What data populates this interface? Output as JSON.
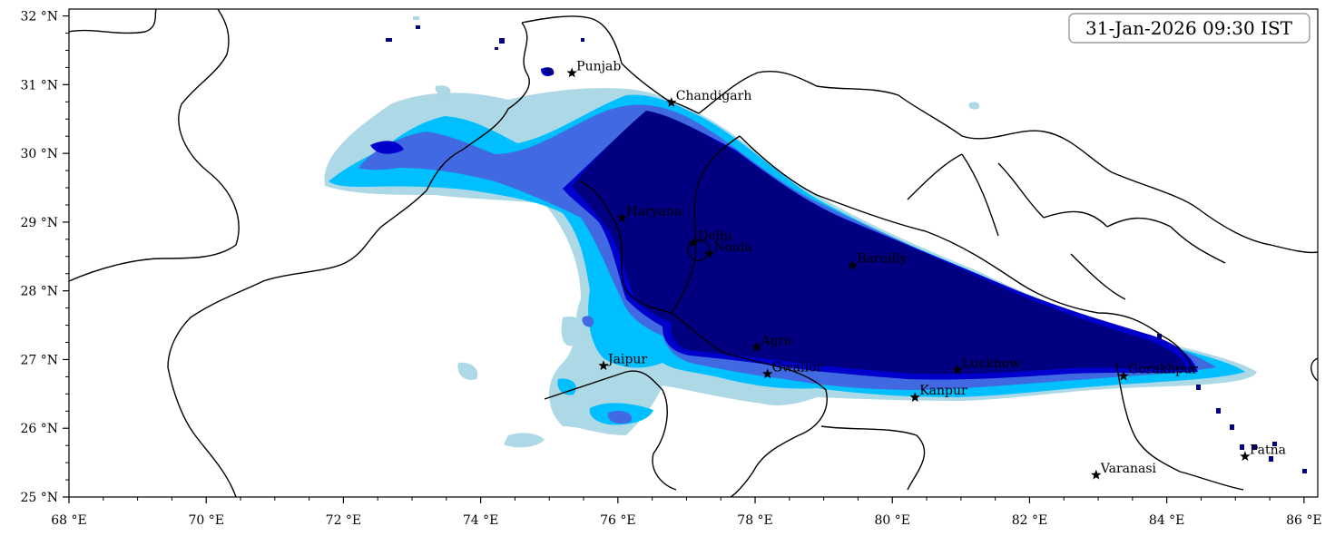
{
  "timestamp": "31-Jan-2026 09:30 IST",
  "axes": {
    "x_ticks": [
      {
        "value": 68,
        "label": "68 °E"
      },
      {
        "value": 70,
        "label": "70 °E"
      },
      {
        "value": 72,
        "label": "72 °E"
      },
      {
        "value": 74,
        "label": "74 °E"
      },
      {
        "value": 76,
        "label": "76 °E"
      },
      {
        "value": 78,
        "label": "78 °E"
      },
      {
        "value": 80,
        "label": "80 °E"
      },
      {
        "value": 82,
        "label": "82 °E"
      },
      {
        "value": 84,
        "label": "84 °E"
      },
      {
        "value": 86,
        "label": "86 °E"
      }
    ],
    "y_ticks": [
      {
        "value": 25,
        "label": "25 °N"
      },
      {
        "value": 26,
        "label": "26 °N"
      },
      {
        "value": 27,
        "label": "27 °N"
      },
      {
        "value": 28,
        "label": "28 °N"
      },
      {
        "value": 29,
        "label": "29 °N"
      },
      {
        "value": 30,
        "label": "30 °N"
      },
      {
        "value": 31,
        "label": "31 °N"
      },
      {
        "value": 32,
        "label": "32 °N"
      }
    ],
    "lon_range": [
      68,
      86.2
    ],
    "lat_range": [
      25,
      32.1
    ]
  },
  "shading_colors": {
    "level1": "#add8e6",
    "level2": "#00bfff",
    "level3": "#4169e1",
    "level4": "#0000cd",
    "level5": "#000080"
  },
  "cities": [
    {
      "name": "Punjab",
      "lon": 75.33,
      "lat": 31.17
    },
    {
      "name": "Chandigarh",
      "lon": 76.78,
      "lat": 30.74
    },
    {
      "name": "Haryana",
      "lon": 76.06,
      "lat": 29.06
    },
    {
      "name": "Delhi",
      "lon": 77.1,
      "lat": 28.7
    },
    {
      "name": "Noida",
      "lon": 77.33,
      "lat": 28.54
    },
    {
      "name": "Bareilly",
      "lon": 79.42,
      "lat": 28.37
    },
    {
      "name": "Agra",
      "lon": 78.02,
      "lat": 27.18
    },
    {
      "name": "Jaipur",
      "lon": 75.79,
      "lat": 26.91
    },
    {
      "name": "Gwalior",
      "lon": 78.18,
      "lat": 26.79
    },
    {
      "name": "Lucknow",
      "lon": 80.95,
      "lat": 26.85
    },
    {
      "name": "Gorakhpur",
      "lon": 83.37,
      "lat": 26.76
    },
    {
      "name": "Kanpur",
      "lon": 80.33,
      "lat": 26.45
    },
    {
      "name": "Varanasi",
      "lon": 82.97,
      "lat": 25.32
    },
    {
      "name": "Patna",
      "lon": 85.14,
      "lat": 25.59
    }
  ]
}
